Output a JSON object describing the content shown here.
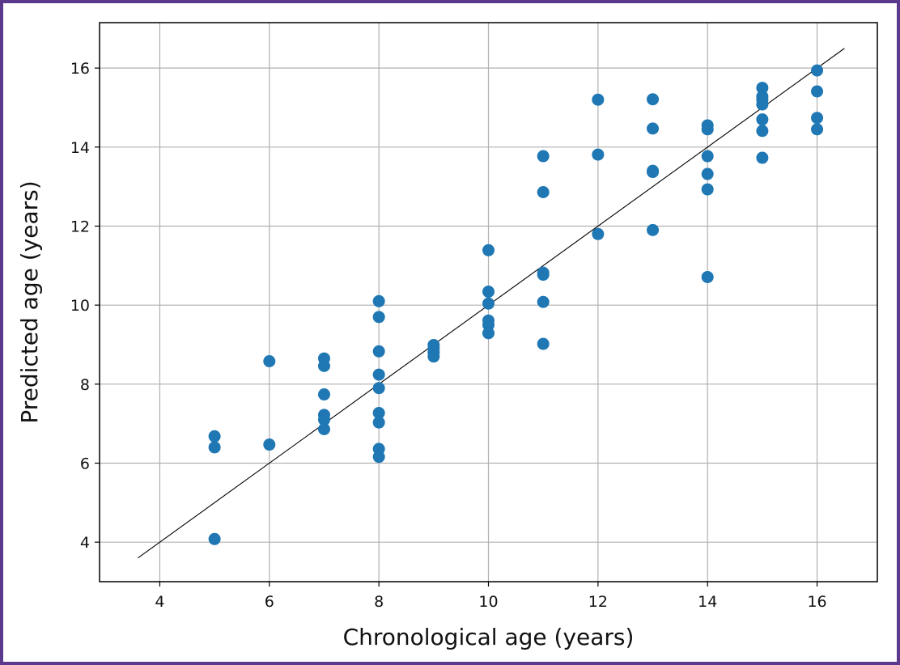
{
  "chart_data": {
    "type": "scatter",
    "title": "",
    "xlabel": "Chronological age (years)",
    "ylabel": "Predicted age (years)",
    "xlim": [
      2.9,
      17.1
    ],
    "ylim": [
      3.0,
      17.15
    ],
    "xticks": [
      4,
      6,
      8,
      10,
      12,
      14,
      16
    ],
    "yticks": [
      4,
      6,
      8,
      10,
      12,
      14,
      16
    ],
    "grid": true,
    "point_color": "#1f77b4",
    "line_color": "#000000",
    "reference_line": {
      "x": [
        3.6,
        16.5
      ],
      "y": [
        3.6,
        16.5
      ]
    },
    "series": [
      {
        "points": [
          [
            5,
            6.68
          ],
          [
            5,
            6.4
          ],
          [
            5,
            4.08
          ],
          [
            6,
            8.58
          ],
          [
            6,
            6.47
          ],
          [
            7,
            8.65
          ],
          [
            7,
            8.46
          ],
          [
            7,
            7.74
          ],
          [
            7,
            7.22
          ],
          [
            7,
            7.1
          ],
          [
            7,
            6.86
          ],
          [
            8,
            10.1
          ],
          [
            8,
            9.7
          ],
          [
            8,
            8.83
          ],
          [
            8,
            8.24
          ],
          [
            8,
            7.9
          ],
          [
            8,
            7.27
          ],
          [
            8,
            7.03
          ],
          [
            8,
            6.36
          ],
          [
            8,
            6.16
          ],
          [
            9,
            8.99
          ],
          [
            9,
            8.9
          ],
          [
            9,
            8.8
          ],
          [
            9,
            8.7
          ],
          [
            10,
            11.39
          ],
          [
            10,
            10.34
          ],
          [
            10,
            10.04
          ],
          [
            10,
            9.61
          ],
          [
            10,
            9.5
          ],
          [
            10,
            9.29
          ],
          [
            11,
            13.77
          ],
          [
            11,
            12.86
          ],
          [
            11,
            10.82
          ],
          [
            11,
            10.77
          ],
          [
            11,
            10.08
          ],
          [
            11,
            9.02
          ],
          [
            12,
            15.2
          ],
          [
            12,
            13.81
          ],
          [
            12,
            11.8
          ],
          [
            13,
            15.21
          ],
          [
            13,
            14.47
          ],
          [
            13,
            13.4
          ],
          [
            13,
            13.37
          ],
          [
            13,
            11.9
          ],
          [
            14,
            14.55
          ],
          [
            14,
            14.45
          ],
          [
            14,
            13.77
          ],
          [
            14,
            13.32
          ],
          [
            14,
            12.93
          ],
          [
            14,
            10.71
          ],
          [
            15,
            15.5
          ],
          [
            15,
            15.28
          ],
          [
            15,
            15.2
          ],
          [
            15,
            15.08
          ],
          [
            15,
            14.7
          ],
          [
            15,
            14.41
          ],
          [
            15,
            13.73
          ],
          [
            16,
            15.94
          ],
          [
            16,
            15.41
          ],
          [
            16,
            14.74
          ],
          [
            16,
            14.45
          ]
        ]
      }
    ]
  }
}
